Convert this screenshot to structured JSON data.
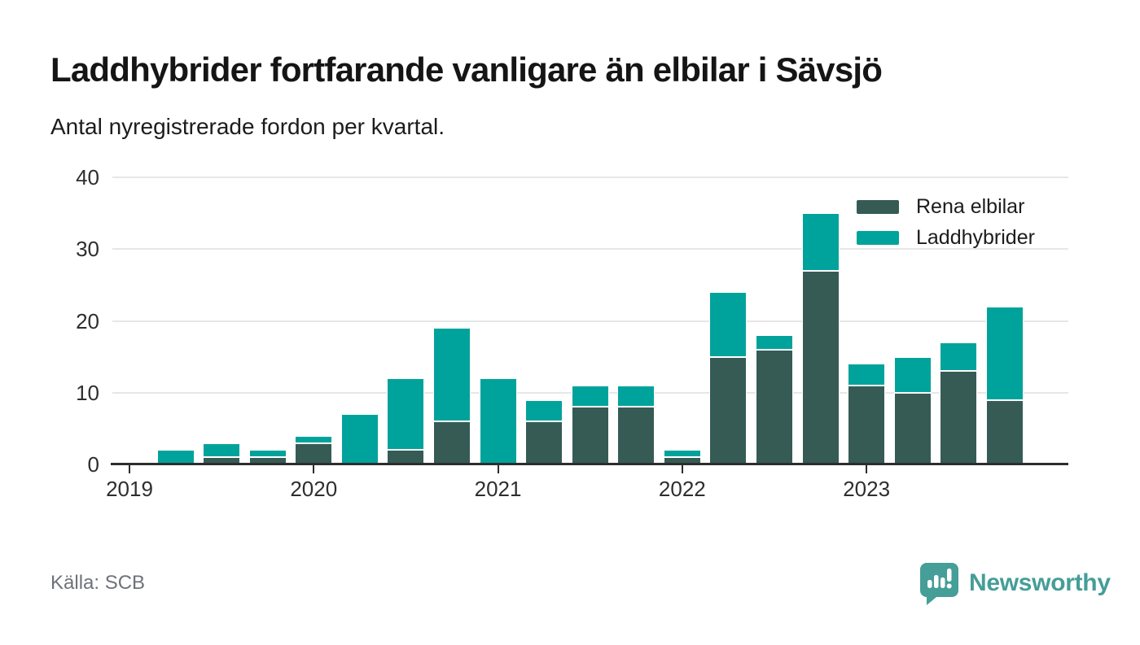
{
  "header": {
    "title": "Laddhybrider fortfarande vanligare än elbilar i Sävsjö",
    "subtitle": "Antal nyregistrerade fordon per kvartal."
  },
  "legend": [
    {
      "label": "Rena elbilar",
      "color": "#365b55"
    },
    {
      "label": "Laddhybrider",
      "color": "#00a39b"
    }
  ],
  "footer": {
    "source": "Källa: SCB",
    "brand": "Newsworthy"
  },
  "colors": {
    "elbilar": "#365b55",
    "laddhybrider": "#00a39b",
    "axis": "#2d2d2d",
    "grid": "#e7e7e7",
    "brand_teal": "#459e97",
    "source_gray": "#6f727a"
  },
  "icons": {
    "brand_logo": "speech-bubble-chart-icon"
  },
  "chart_data": {
    "type": "bar",
    "stacked": true,
    "title": "Laddhybrider fortfarande vanligare än elbilar i Sävsjö",
    "subtitle": "Antal nyregistrerade fordon per kvartal.",
    "categories": [
      "2019 Q1",
      "2019 Q2",
      "2019 Q3",
      "2019 Q4",
      "2020 Q1",
      "2020 Q2",
      "2020 Q3",
      "2020 Q4",
      "2021 Q1",
      "2021 Q2",
      "2021 Q3",
      "2021 Q4",
      "2022 Q1",
      "2022 Q2",
      "2022 Q3",
      "2022 Q4",
      "2023 Q1",
      "2023 Q2",
      "2023 Q3",
      "2023 Q4"
    ],
    "series": [
      {
        "name": "Rena elbilar",
        "color": "#365b55",
        "values": [
          0,
          0,
          1,
          1,
          3,
          0,
          2,
          6,
          0,
          6,
          8,
          8,
          1,
          15,
          16,
          27,
          11,
          10,
          13,
          9
        ]
      },
      {
        "name": "Laddhybrider",
        "color": "#00a39b",
        "values": [
          0,
          2,
          2,
          1,
          1,
          7,
          10,
          13,
          12,
          3,
          3,
          3,
          1,
          9,
          2,
          8,
          3,
          5,
          4,
          13
        ]
      }
    ],
    "x_tick_labels": [
      "2019",
      "2020",
      "2021",
      "2022",
      "2023"
    ],
    "x_tick_category_indexes": [
      0,
      4,
      8,
      12,
      16
    ],
    "y_ticks": [
      0,
      10,
      20,
      30,
      40
    ],
    "ylim": [
      0,
      40
    ],
    "xlabel": "",
    "ylabel": "",
    "grid": true,
    "legend_position": "top-right"
  }
}
